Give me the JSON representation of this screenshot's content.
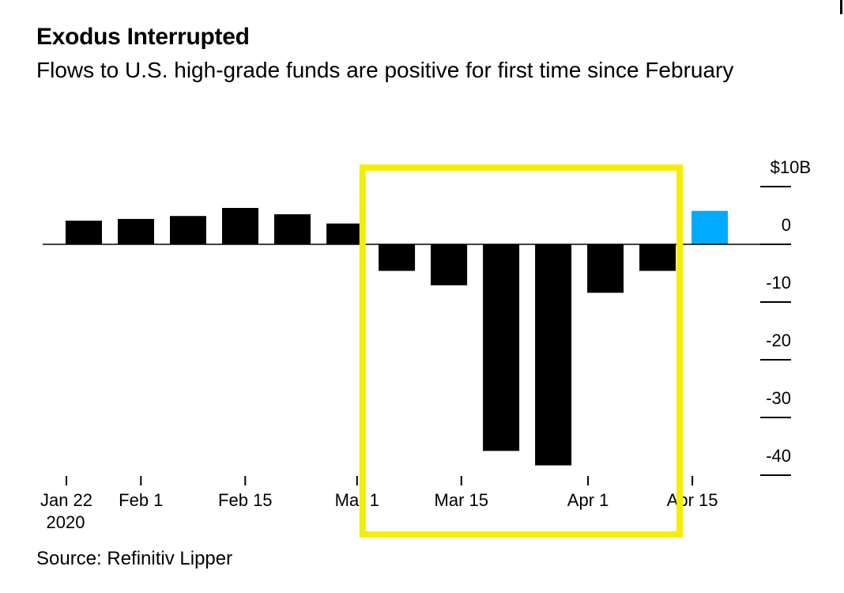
{
  "title": "Exodus Interrupted",
  "subtitle": "Flows to U.S. high-grade funds are positive for first time since February",
  "source": "Source: Refinitiv Lipper",
  "colors": {
    "bar": "#000000",
    "highlight_bar": "#00aaff",
    "highlight_box": "#f5ee00"
  },
  "chart_data": {
    "type": "bar",
    "ylim": [
      -40,
      10
    ],
    "y_ticks": [
      {
        "value": 10,
        "label": "$10B"
      },
      {
        "value": 0,
        "label": "0"
      },
      {
        "value": -10,
        "label": "-10"
      },
      {
        "value": -20,
        "label": "-20"
      },
      {
        "value": -30,
        "label": "-30"
      },
      {
        "value": -40,
        "label": "-40"
      }
    ],
    "x_ticks": [
      {
        "date": "2020-01-22",
        "label": "Jan 22",
        "sublabel": "2020"
      },
      {
        "date": "2020-02-01",
        "label": "Feb 1"
      },
      {
        "date": "2020-02-15",
        "label": "Feb 15"
      },
      {
        "date": "2020-03-01",
        "label": "Mar 1"
      },
      {
        "date": "2020-03-15",
        "label": "Mar 15"
      },
      {
        "date": "2020-04-01",
        "label": "Apr 1"
      },
      {
        "date": "2020-04-15",
        "label": "Apr 15"
      }
    ],
    "series": [
      {
        "x": [
          "2020-01-22",
          "2020-01-29",
          "2020-02-05",
          "2020-02-12",
          "2020-02-19",
          "2020-02-26",
          "2020-03-04",
          "2020-03-11",
          "2020-03-18",
          "2020-03-25",
          "2020-04-01",
          "2020-04-08",
          "2020-04-15"
        ],
        "values": [
          4.1,
          4.4,
          4.9,
          6.3,
          5.2,
          3.6,
          -4.6,
          -7.1,
          -35.8,
          -38.3,
          -8.4,
          -4.6,
          5.8
        ],
        "highlight_index": 12
      }
    ],
    "highlight_range": [
      "2020-03-01",
      "2020-04-08"
    ]
  }
}
